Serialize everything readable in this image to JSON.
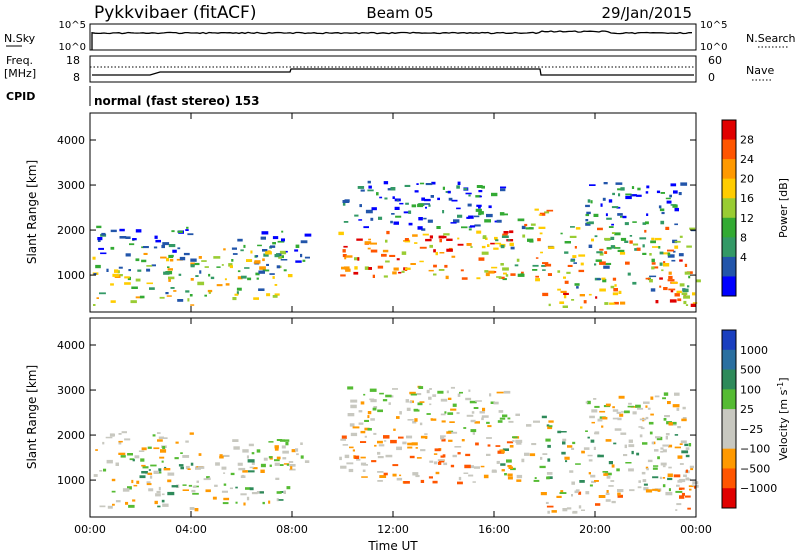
{
  "header": {
    "station": "Pykkvibaer (fitACF)",
    "beam": "Beam 05",
    "date": "29/Jan/2015"
  },
  "mode_text": "normal (fast stereo) 153",
  "cpid_label": "CPID",
  "top_panel": {
    "left_label": "N.Sky",
    "left_ticks": [
      "10^5",
      "10^0"
    ],
    "right_label": "N.Search",
    "right_ticks": [
      "10^5",
      "10^0"
    ]
  },
  "freq_panel": {
    "left_label_1": "Freq.",
    "left_label_2": "[MHz]",
    "left_ticks": [
      "18",
      "8"
    ],
    "right_label": "Nave",
    "right_ticks": [
      "60",
      "0"
    ]
  },
  "chart_data": [
    {
      "type": "heatmap",
      "name_key": "power",
      "ylabel": "Slant Range [km]",
      "xlabel": "",
      "ylim": [
        180,
        4600
      ],
      "xlim": [
        0,
        24
      ],
      "y_ticks": [
        "1000",
        "2000",
        "3000",
        "4000"
      ],
      "y_tick_values": [
        1000,
        2000,
        3000,
        4000
      ],
      "colorbar": {
        "label": "Power [dB]",
        "tick_labels": [
          "28",
          "24",
          "20",
          "16",
          "12",
          "8",
          "4"
        ],
        "colors": [
          "#e00000",
          "#ff5500",
          "#ff9900",
          "#ffcc00",
          "#99cc33",
          "#33aa33",
          "#339966",
          "#2255aa",
          "#0000ff"
        ]
      }
    },
    {
      "type": "heatmap",
      "name_key": "velocity",
      "ylabel": "Slant Range [km]",
      "xlabel": "Time UT",
      "ylim": [
        180,
        4600
      ],
      "xlim": [
        0,
        24
      ],
      "y_ticks": [
        "1000",
        "2000",
        "3000",
        "4000"
      ],
      "y_tick_values": [
        1000,
        2000,
        3000,
        4000
      ],
      "x_ticks": [
        "00:00",
        "04:00",
        "08:00",
        "12:00",
        "16:00",
        "20:00",
        "00:00"
      ],
      "x_tick_values": [
        0,
        4,
        8,
        12,
        16,
        20,
        24
      ],
      "colorbar": {
        "label": "Velocity [m s",
        "label_sup": "-1",
        "label_end": "]",
        "tick_labels": [
          "1000",
          "500",
          "100",
          "25",
          "−25",
          "−100",
          "−500",
          "−1000"
        ],
        "colors": [
          "#1a3fbf",
          "#2a6fa0",
          "#2e8a5a",
          "#55bb33",
          "#c8c8c0",
          "#c8c8c0",
          "#ff9900",
          "#ff5500",
          "#e00000"
        ]
      }
    }
  ]
}
